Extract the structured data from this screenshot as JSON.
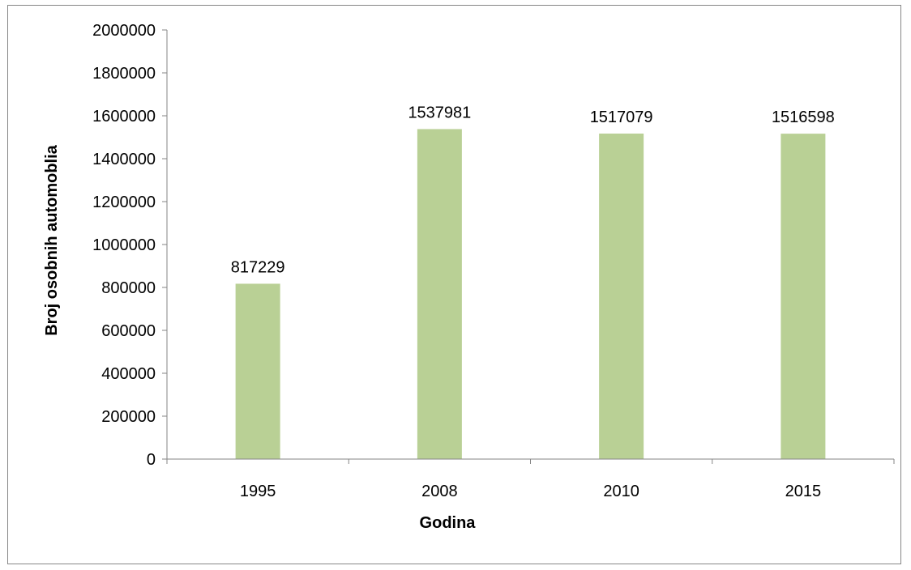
{
  "chart_data": {
    "type": "bar",
    "categories": [
      "1995",
      "2008",
      "2010",
      "2015"
    ],
    "values": [
      817229,
      1537981,
      1517079,
      1516598
    ],
    "data_labels": [
      "817229",
      "1537981",
      "1517079",
      "1516598"
    ],
    "title": "",
    "xlabel": "Godina",
    "ylabel": "Broj osobnih automoblia",
    "ylim": [
      0,
      2000000
    ],
    "yticks": [
      0,
      200000,
      400000,
      600000,
      800000,
      1000000,
      1200000,
      1400000,
      1600000,
      1800000,
      2000000
    ],
    "ytick_labels": [
      "0",
      "200000",
      "400000",
      "600000",
      "800000",
      "1000000",
      "1200000",
      "1400000",
      "1600000",
      "1800000",
      "2000000"
    ],
    "bar_color": "#b9d095",
    "grid": false,
    "legend": "none"
  }
}
